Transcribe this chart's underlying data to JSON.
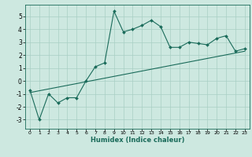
{
  "xlabel": "Humidex (Indice chaleur)",
  "bg_color": "#cde8e0",
  "grid_color": "#a8cfc4",
  "line_color": "#1a6b5a",
  "xlim": [
    -0.5,
    23.5
  ],
  "ylim": [
    -3.7,
    5.9
  ],
  "xticks": [
    0,
    1,
    2,
    3,
    4,
    5,
    6,
    7,
    8,
    9,
    10,
    11,
    12,
    13,
    14,
    15,
    16,
    17,
    18,
    19,
    20,
    21,
    22,
    23
  ],
  "yticks": [
    -3,
    -2,
    -1,
    0,
    1,
    2,
    3,
    4,
    5
  ],
  "data_x": [
    0,
    1,
    2,
    3,
    4,
    5,
    6,
    7,
    8,
    9,
    10,
    11,
    12,
    13,
    14,
    15,
    16,
    17,
    18,
    19,
    20,
    21,
    22,
    23
  ],
  "data_y": [
    -0.7,
    -3.0,
    -1.0,
    -1.7,
    -1.3,
    -1.3,
    0.0,
    1.1,
    1.4,
    5.4,
    3.8,
    4.0,
    4.3,
    4.7,
    4.2,
    2.6,
    2.6,
    3.0,
    2.9,
    2.8,
    3.3,
    3.5,
    2.3,
    2.5
  ],
  "trend_x": [
    0,
    23
  ],
  "trend_y": [
    -0.9,
    2.3
  ],
  "tick_fontsize_x": 4.5,
  "tick_fontsize_y": 5.5,
  "xlabel_fontsize": 6.0,
  "marker_size": 2.0,
  "line_width": 0.8
}
